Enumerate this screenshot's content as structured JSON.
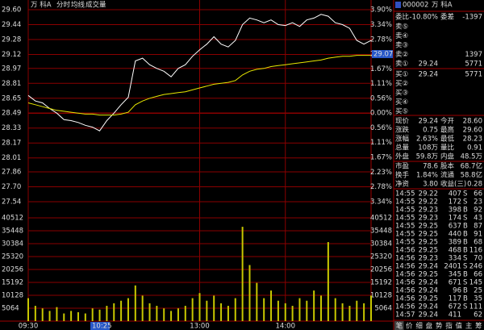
{
  "header": {
    "name": "万  科A"
  },
  "cursor": {
    "price": "29.07",
    "time": "10:25"
  },
  "chart_data": [
    {
      "type": "line",
      "x": [
        0,
        5,
        10,
        15,
        20,
        25,
        30,
        35,
        40,
        45,
        50,
        55,
        60,
        65,
        70,
        75,
        80,
        85,
        90,
        95,
        100,
        105,
        110,
        115,
        120,
        125,
        130,
        135,
        140,
        145,
        150,
        155,
        160,
        165,
        170,
        175,
        180,
        185,
        190,
        195,
        200,
        205,
        210,
        215,
        220,
        225,
        230,
        235,
        240
      ],
      "xlim": [
        0,
        240
      ],
      "xticks": [
        {
          "value": 0,
          "label": "09:30"
        },
        {
          "value": 120,
          "label": "13:00"
        },
        {
          "value": 180,
          "label": "14:00"
        }
      ],
      "ylim": [
        27.54,
        29.6
      ],
      "yticks": [
        {
          "value": 29.6,
          "label": "29.60"
        },
        29.44,
        29.28,
        29.12,
        28.97,
        28.81,
        28.65,
        28.49,
        28.33,
        28.17,
        28.01,
        27.86,
        {
          "value": 27.7,
          "label": "27.70"
        },
        27.54
      ],
      "y2lim": [
        -3.34,
        3.9
      ],
      "y2ticks": [
        {
          "value": 3.9,
          "label": "3.90%"
        },
        {
          "value": 3.34,
          "label": "3.34%"
        },
        {
          "value": 2.78,
          "label": "2.78%"
        },
        {
          "value": 2.23,
          "label": "2.23%"
        },
        {
          "value": 1.67,
          "label": "1.67%"
        },
        {
          "value": 1.11,
          "label": "1.11%"
        },
        {
          "value": 0.56,
          "label": "0.56%"
        },
        {
          "value": 0,
          "label": "0.00%"
        },
        {
          "value": -0.56,
          "label": "0.56%"
        },
        {
          "value": -1.11,
          "label": "1.11%"
        },
        {
          "value": -1.67,
          "label": "1.67%"
        },
        {
          "value": -2.23,
          "label": "2.23%"
        },
        {
          "value": -2.78,
          "label": "2.78%"
        },
        {
          "value": -3.34,
          "label": "3.34%"
        }
      ],
      "grid": true,
      "series": [
        {
          "name": "分时",
          "color": "#ffffff",
          "values": [
            28.68,
            28.62,
            28.6,
            28.54,
            28.49,
            28.42,
            28.41,
            28.39,
            28.36,
            28.34,
            28.3,
            28.41,
            28.49,
            28.58,
            28.66,
            29.05,
            29.08,
            29.01,
            28.97,
            28.94,
            28.88,
            28.97,
            29.01,
            29.1,
            29.17,
            29.23,
            29.31,
            29.23,
            29.2,
            29.27,
            29.44,
            29.51,
            29.49,
            29.46,
            29.49,
            29.44,
            29.43,
            29.46,
            29.42,
            29.49,
            29.51,
            29.55,
            29.53,
            29.46,
            29.44,
            29.4,
            29.27,
            29.23,
            29.27
          ]
        },
        {
          "name": "均线",
          "color": "#e8e800",
          "values": [
            28.6,
            28.58,
            28.56,
            28.54,
            28.52,
            28.51,
            28.5,
            28.49,
            28.48,
            28.48,
            28.47,
            28.47,
            28.47,
            28.48,
            28.5,
            28.58,
            28.62,
            28.65,
            28.67,
            28.69,
            28.7,
            28.71,
            28.72,
            28.74,
            28.76,
            28.78,
            28.8,
            28.81,
            28.82,
            28.84,
            28.9,
            28.94,
            28.96,
            28.97,
            28.99,
            29.0,
            29.01,
            29.02,
            29.03,
            29.04,
            29.05,
            29.06,
            29.08,
            29.09,
            29.1,
            29.1,
            29.11,
            29.11,
            29.11
          ]
        }
      ]
    },
    {
      "type": "bar",
      "x": [
        0,
        5,
        10,
        15,
        20,
        25,
        30,
        35,
        40,
        45,
        50,
        55,
        60,
        65,
        70,
        75,
        80,
        85,
        90,
        95,
        100,
        105,
        110,
        115,
        120,
        125,
        130,
        135,
        140,
        145,
        150,
        155,
        160,
        165,
        170,
        175,
        180,
        185,
        190,
        195,
        200,
        205,
        210,
        215,
        220,
        225,
        230,
        235,
        240
      ],
      "xlim": [
        0,
        240
      ],
      "ylim": [
        0,
        40512
      ],
      "yticks": [
        5064,
        10128,
        15192,
        20256,
        25320,
        30384,
        35448,
        40512
      ],
      "grid": true,
      "series": [
        {
          "name": "成交量",
          "color": "#c8c800",
          "values": [
            9000,
            6000,
            5000,
            4000,
            5500,
            3000,
            4000,
            3500,
            3000,
            5000,
            4500,
            6000,
            7000,
            8000,
            9000,
            14000,
            10000,
            7000,
            6000,
            5000,
            4000,
            5000,
            6000,
            9000,
            11000,
            8000,
            10000,
            7000,
            6000,
            9000,
            37000,
            22000,
            15000,
            9000,
            12000,
            8000,
            7000,
            6000,
            9000,
            8000,
            12000,
            10000,
            31000,
            9000,
            7000,
            6000,
            8000,
            7000,
            10000
          ]
        }
      ]
    }
  ],
  "panel": {
    "code": "000002",
    "name": "万  科A",
    "weibi": [
      "委比",
      "-10.80%",
      "委差",
      "-1397"
    ],
    "book": [
      {
        "label": "卖⑤"
      },
      {
        "label": "卖④"
      },
      {
        "label": "卖③"
      },
      {
        "label": "卖②",
        "volume": "1397"
      },
      {
        "label": "卖①",
        "price": "29.24",
        "volume": "5771"
      },
      {
        "label": "买①",
        "price": "29.24",
        "volume": "5771"
      },
      {
        "label": "买②"
      },
      {
        "label": "买③"
      },
      {
        "label": "买④"
      },
      {
        "label": "买⑤"
      }
    ],
    "quote": [
      [
        "现价",
        "29.24",
        "今开",
        "28.60"
      ],
      [
        "涨跌",
        "0.75",
        "最高",
        "29.60"
      ],
      [
        "涨幅",
        "2.63%",
        "最低",
        "28.23"
      ],
      [
        "总量",
        "108万",
        "量比",
        "0.91"
      ],
      [
        "外盘",
        "59.8万",
        "内盘",
        "48.5万"
      ]
    ],
    "stats": [
      [
        "市盈",
        "78.6",
        "股本",
        "68.7亿"
      ],
      [
        "换手",
        "1.84%",
        "流通",
        "58.8亿"
      ],
      [
        "净资",
        "3.80",
        "收益(三)",
        "0.28"
      ]
    ],
    "ticks": [
      {
        "time": "14:55",
        "price": "29.22",
        "volume": "407",
        "side": "S",
        "count": "66"
      },
      {
        "time": "14:55",
        "price": "29.22",
        "volume": "172",
        "side": "S",
        "count": "23"
      },
      {
        "time": "14:55",
        "price": "29.23",
        "volume": "398",
        "side": "B",
        "count": "92"
      },
      {
        "time": "14:55",
        "price": "29.23",
        "volume": "174",
        "side": "S",
        "count": "43"
      },
      {
        "time": "14:55",
        "price": "29.25",
        "volume": "637",
        "side": "B",
        "count": "87"
      },
      {
        "time": "14:55",
        "price": "29.25",
        "volume": "440",
        "side": "B",
        "count": "91"
      },
      {
        "time": "14:55",
        "price": "29.25",
        "volume": "389",
        "side": "B",
        "count": "68"
      },
      {
        "time": "14:56",
        "price": "29.25",
        "volume": "468",
        "side": "B",
        "count": "116"
      },
      {
        "time": "14:56",
        "price": "29.23",
        "volume": "334",
        "side": "S",
        "count": "70"
      },
      {
        "time": "14:56",
        "price": "29.24",
        "volume": "2401",
        "side": "S",
        "count": "246"
      },
      {
        "time": "14:56",
        "price": "29.25",
        "volume": "345",
        "side": "B",
        "count": "66"
      },
      {
        "time": "14:56",
        "price": "29.24",
        "volume": "671",
        "side": "S",
        "count": "145"
      },
      {
        "time": "14:56",
        "price": "29.24",
        "volume": "96",
        "side": "B",
        "count": "25"
      },
      {
        "time": "14:56",
        "price": "29.25",
        "volume": "117",
        "side": "B",
        "count": "35"
      },
      {
        "time": "14:56",
        "price": "29.24",
        "volume": "672",
        "side": "S",
        "count": "111"
      },
      {
        "time": "14:57",
        "price": "29.24",
        "volume": "411",
        "count": "62"
      }
    ],
    "tabs": [
      "笔",
      "价",
      "细",
      "盘",
      "势",
      "指",
      "值",
      "主",
      "筹"
    ]
  }
}
